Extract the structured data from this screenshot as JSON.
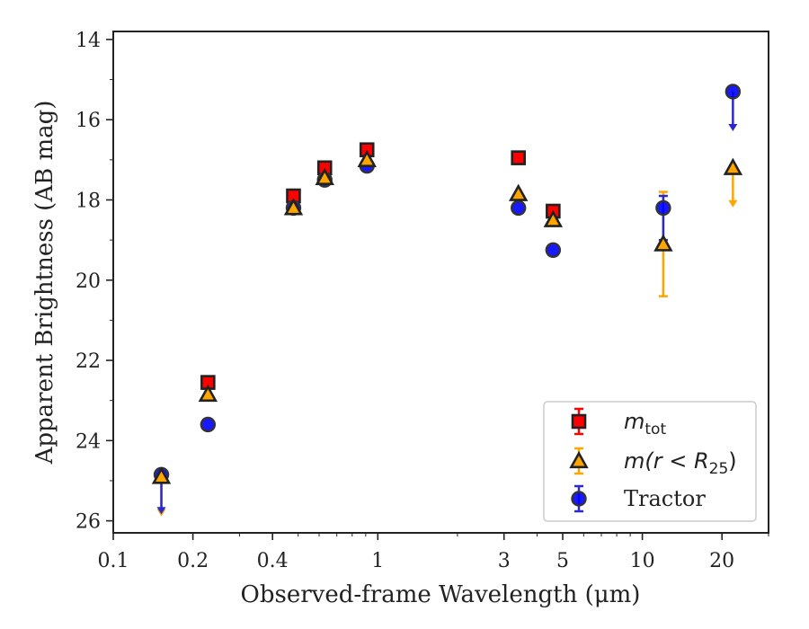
{
  "chart_data": {
    "type": "scatter",
    "xlabel": "Observed-frame Wavelength (μm)",
    "ylabel": "Apparent Brightness (AB mag)",
    "xscale": "log",
    "xlim": [
      0.1,
      30
    ],
    "ylim": [
      26.3,
      13.8
    ],
    "y_inverted": true,
    "xticks": [
      0.1,
      0.2,
      0.4,
      1,
      3,
      5,
      10,
      20
    ],
    "xtick_labels": [
      "0.1",
      "0.2",
      "0.4",
      "1",
      "3",
      "5",
      "10",
      "20"
    ],
    "yticks": [
      14,
      16,
      18,
      20,
      22,
      24,
      26
    ],
    "ytick_labels": [
      "14",
      "16",
      "18",
      "20",
      "22",
      "24",
      "26"
    ],
    "legend_position": "lower-right",
    "series": [
      {
        "key": "mtot",
        "legend_main": "m",
        "legend_sub": "tot",
        "marker": "square",
        "color": "#ff0000",
        "errcolor": "#ff0000",
        "points": [
          {
            "x": 0.228,
            "y": 22.55
          },
          {
            "x": 0.48,
            "y": 17.9
          },
          {
            "x": 0.63,
            "y": 17.2
          },
          {
            "x": 0.91,
            "y": 16.75
          },
          {
            "x": 3.4,
            "y": 16.95
          },
          {
            "x": 4.6,
            "y": 18.28
          }
        ]
      },
      {
        "key": "mr25",
        "legend_main": "m(r < R",
        "legend_sub": "25",
        "legend_tail": ")",
        "marker": "triangle",
        "color": "#ffa500",
        "errcolor": "#ffa500",
        "points": [
          {
            "x": 0.152,
            "y": 24.9,
            "upper_limit": true
          },
          {
            "x": 0.228,
            "y": 22.85
          },
          {
            "x": 0.48,
            "y": 18.2
          },
          {
            "x": 0.63,
            "y": 17.45
          },
          {
            "x": 0.91,
            "y": 17.0
          },
          {
            "x": 3.4,
            "y": 17.85
          },
          {
            "x": 4.6,
            "y": 18.5
          },
          {
            "x": 12.0,
            "y": 19.1,
            "yerr_low": 17.8,
            "yerr_high": 20.4
          },
          {
            "x": 22.0,
            "y": 17.2,
            "upper_limit": true
          }
        ]
      },
      {
        "key": "tractor",
        "legend_main": "Tractor",
        "marker": "circle",
        "color": "#0000ff",
        "errcolor": "#2a2acc",
        "points": [
          {
            "x": 0.152,
            "y": 24.85,
            "upper_limit": true
          },
          {
            "x": 0.228,
            "y": 23.6
          },
          {
            "x": 0.48,
            "y": 18.2
          },
          {
            "x": 0.63,
            "y": 17.5
          },
          {
            "x": 0.91,
            "y": 17.15
          },
          {
            "x": 3.4,
            "y": 18.2
          },
          {
            "x": 4.6,
            "y": 19.25
          },
          {
            "x": 12.0,
            "y": 18.2,
            "yerr_low": 17.9,
            "yerr_high": 19.0
          },
          {
            "x": 22.0,
            "y": 15.3,
            "upper_limit": true
          }
        ]
      }
    ]
  }
}
